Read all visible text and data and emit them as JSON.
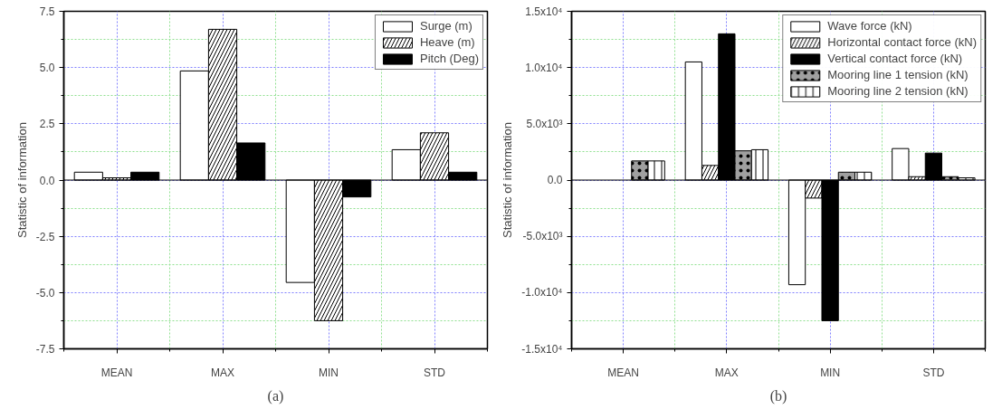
{
  "chart_data": [
    {
      "type": "bar",
      "title": "(a)",
      "ylabel": "Statistic of information",
      "categories": [
        "MEAN",
        "MAX",
        "MIN",
        "STD"
      ],
      "series": [
        {
          "name": "Surge (m)",
          "color": "#ffffff",
          "values": [
            0.35,
            4.85,
            -4.55,
            1.35
          ]
        },
        {
          "name": "Heave (m)",
          "color": "#ffffff",
          "values": [
            0.1,
            6.7,
            -6.25,
            2.1
          ]
        },
        {
          "name": "Pitch (Deg)",
          "color": "#000000",
          "values": [
            0.35,
            1.65,
            -0.75,
            0.35
          ]
        }
      ],
      "ylim": [
        -7.5,
        7.5
      ],
      "yticks": [
        -7.5,
        {
          "value": -5,
          "label": "-5.0"
        },
        -2.5,
        {
          "value": 0,
          "label": "0.0"
        },
        2.5,
        {
          "value": 5,
          "label": "5.0"
        },
        7.5
      ],
      "grid": true,
      "legend": "top right"
    },
    {
      "type": "bar",
      "title": "(b)",
      "ylabel": "Statistic of information",
      "categories": [
        "MEAN",
        "MAX",
        "MIN",
        "STD"
      ],
      "series": [
        {
          "name": "Wave force (kN)",
          "color": "#ffffff",
          "values": [
            null,
            10500,
            -9300,
            2800
          ]
        },
        {
          "name": "Horizontal contact force (kN)",
          "color": "#ffffff",
          "values": [
            null,
            1300,
            -1600,
            300
          ]
        },
        {
          "name": "Vertical contact force (kN)",
          "color": "#000000",
          "values": [
            null,
            13000,
            -12500,
            2400
          ]
        },
        {
          "name": "Mooring line 1 tension (kN)",
          "color": "#a0a0a0",
          "values": [
            1700,
            2600,
            700,
            300
          ]
        },
        {
          "name": "Mooring line 2 tension (kN)",
          "color": "#ffffff",
          "values": [
            1700,
            2700,
            700,
            200
          ]
        }
      ],
      "ylim": [
        -15000,
        15000
      ],
      "yticks": [
        {
          "value": -15000,
          "label": "-1.5x10⁴"
        },
        {
          "value": -10000,
          "label": "-1.0x10⁴"
        },
        {
          "value": -5000,
          "label": "-5.0x10³"
        },
        {
          "value": 0,
          "label": "0.0"
        },
        {
          "value": 5000,
          "label": "5.0x10³"
        },
        {
          "value": 10000,
          "label": "1.0x10⁴"
        },
        {
          "value": 15000,
          "label": "1.5x10⁴"
        }
      ],
      "grid": true,
      "legend": "top right"
    }
  ]
}
